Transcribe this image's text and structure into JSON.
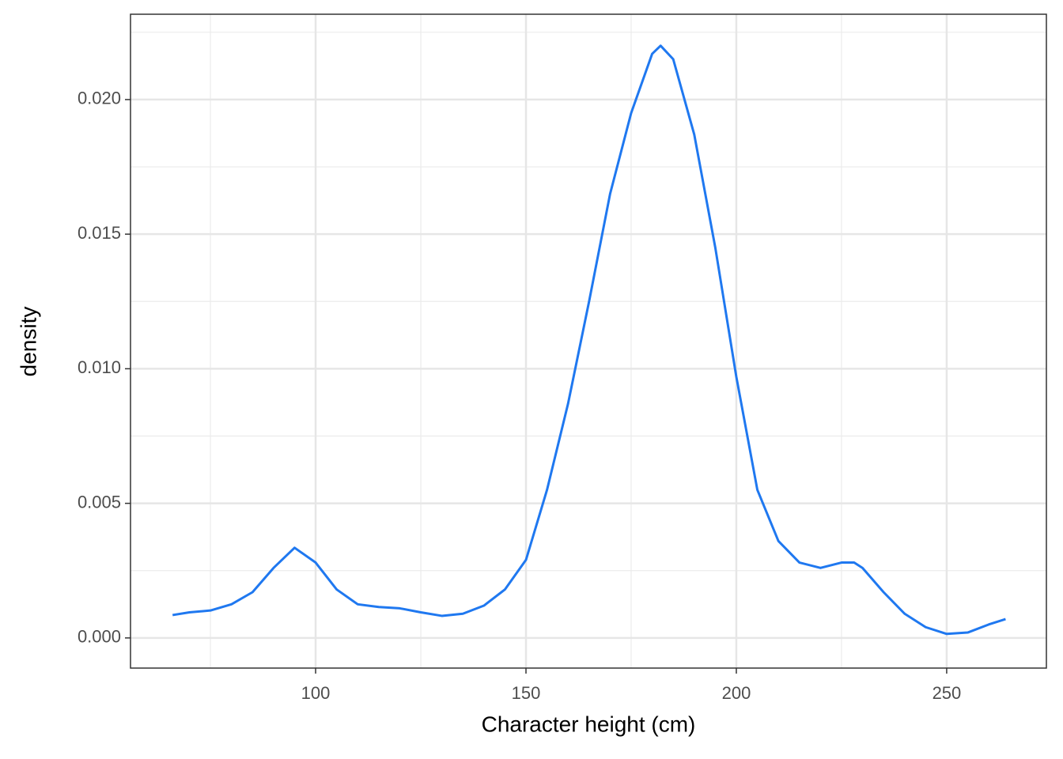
{
  "chart_data": {
    "type": "line",
    "x_label": "Character height (cm)",
    "y_label": "density",
    "xlim": [
      56.0,
      273.7
    ],
    "ylim": [
      -0.00112,
      0.02317
    ],
    "xticks": [
      100,
      150,
      200,
      250
    ],
    "yticks": [
      {
        "value": 0,
        "label": "0.000"
      },
      {
        "value": 0.005,
        "label": "0.005"
      },
      {
        "value": 0.01,
        "label": "0.010"
      },
      {
        "value": 0.015,
        "label": "0.015"
      },
      {
        "value": 0.02,
        "label": "0.020"
      }
    ],
    "x_minor_ticks": [
      75,
      125,
      175,
      225
    ],
    "y_minor_ticks": [
      0.0025,
      0.0075,
      0.0125,
      0.0175,
      0.0225
    ],
    "grid": true,
    "series": [
      {
        "color": "#1f78f0",
        "x": [
          66,
          70,
          75,
          80,
          85,
          90,
          95,
          100,
          105,
          110,
          115,
          120,
          125,
          130,
          135,
          140,
          145,
          150,
          155,
          160,
          165,
          170,
          175,
          180,
          182,
          185,
          190,
          195,
          200,
          205,
          210,
          215,
          220,
          225,
          228,
          230,
          235,
          240,
          245,
          250,
          255,
          260,
          264
        ],
        "values": [
          0.00085,
          0.00095,
          0.00102,
          0.00125,
          0.0017,
          0.0026,
          0.00335,
          0.0028,
          0.0018,
          0.00125,
          0.00115,
          0.0011,
          0.00095,
          0.00082,
          0.0009,
          0.0012,
          0.0018,
          0.0029,
          0.0055,
          0.0087,
          0.0125,
          0.0165,
          0.0195,
          0.0217,
          0.022,
          0.0215,
          0.0187,
          0.0145,
          0.0097,
          0.0055,
          0.0036,
          0.0028,
          0.0026,
          0.0028,
          0.0028,
          0.0026,
          0.0017,
          0.0009,
          0.0004,
          0.00015,
          0.0002,
          0.0005,
          0.0007
        ]
      }
    ]
  }
}
